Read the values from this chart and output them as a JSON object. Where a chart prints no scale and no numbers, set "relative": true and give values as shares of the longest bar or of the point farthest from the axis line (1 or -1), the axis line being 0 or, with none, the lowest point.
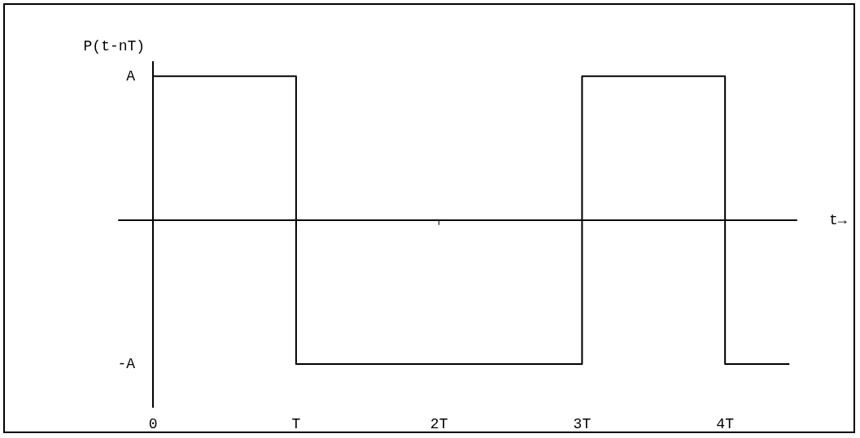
{
  "chart_data": {
    "type": "step",
    "xlabel": "t→",
    "ylabel": "P(t-nT)",
    "relative": true,
    "x": [
      0,
      1,
      3,
      4,
      4.45
    ],
    "series": [
      {
        "color": "#000000",
        "values": [
          1,
          -1,
          1,
          -1,
          -1
        ]
      }
    ],
    "xlim": [
      -0.24,
      4.5
    ],
    "xticks": [
      {
        "value": 0,
        "label": "0"
      },
      {
        "value": 1,
        "label": "T"
      },
      {
        "value": 2,
        "label": "2T"
      },
      {
        "value": 3,
        "label": "3T"
      },
      {
        "value": 4,
        "label": "4T"
      }
    ],
    "annotations": [
      "A",
      "-A"
    ],
    "marker": "none",
    "line_style": "solid"
  }
}
